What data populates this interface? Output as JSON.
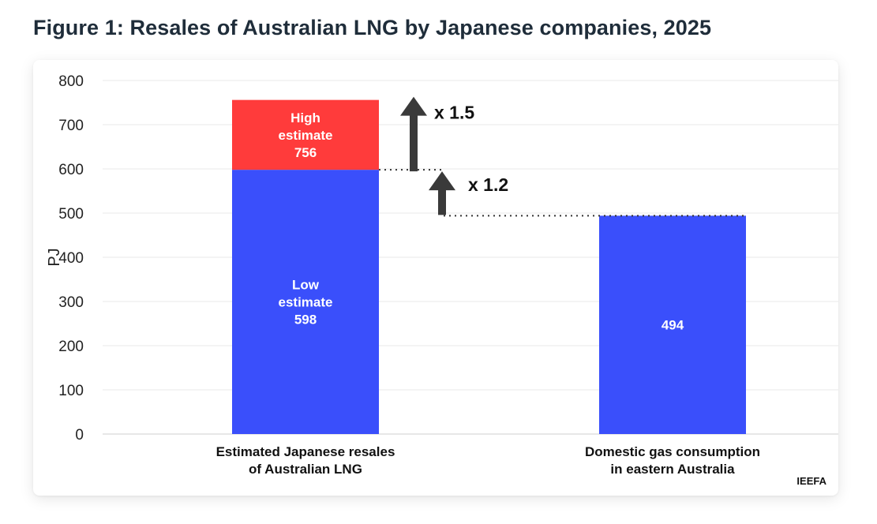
{
  "title": "Figure 1: Resales of Australian LNG by Japanese companies, 2025",
  "source": "IEEFA",
  "colors": {
    "low": "#3a4ffb",
    "high": "#ff3b3b",
    "arrow": "#3a3a3a",
    "grid": "#e8e8e8"
  },
  "chart_data": {
    "type": "bar",
    "ylabel": "PJ",
    "ylim": [
      0,
      800
    ],
    "yticks": [
      0,
      100,
      200,
      300,
      400,
      500,
      600,
      700,
      800
    ],
    "categories": [
      [
        "Estimated Japanese resales",
        "of Australian LNG"
      ],
      [
        "Domestic gas consumption",
        "in eastern Australia"
      ]
    ],
    "bars": [
      {
        "category_index": 0,
        "segments": [
          {
            "value": 598,
            "label": [
              "Low",
              "estimate",
              "598"
            ],
            "color_key": "low"
          },
          {
            "value": 756,
            "label": [
              "High",
              "estimate",
              "756"
            ],
            "color_key": "high"
          }
        ]
      },
      {
        "category_index": 1,
        "segments": [
          {
            "value": 494,
            "label": [
              "494"
            ],
            "color_key": "low"
          }
        ]
      }
    ],
    "annotations": [
      {
        "text": "x 1.5",
        "from": 598,
        "to": 756
      },
      {
        "text": "x 1.2",
        "from": 494,
        "to": 598
      }
    ]
  }
}
